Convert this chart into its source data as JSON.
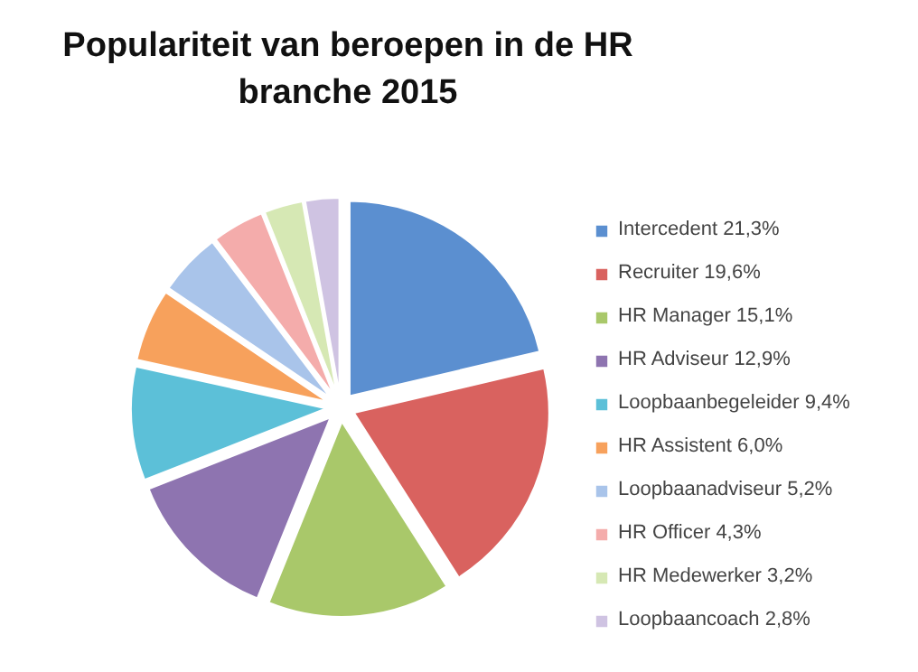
{
  "chart_data": {
    "type": "pie",
    "title": "Populariteit van beroepen in de HR branche 2015",
    "categories": [
      "Intercedent",
      "Recruiter",
      "HR Manager",
      "HR Adviseur",
      "Loopbaanbegeleider",
      "HR Assistent",
      "Loopbaanadviseur",
      "HR Officer",
      "HR Medewerker",
      "Loopbaancoach"
    ],
    "values": [
      21.3,
      19.6,
      15.1,
      12.9,
      9.4,
      6.0,
      5.2,
      4.3,
      3.2,
      2.8
    ],
    "value_labels": [
      "21,3%",
      "19,6%",
      "15,1%",
      "12,9%",
      "9,4%",
      "6,0%",
      "5,2%",
      "4,3%",
      "3,2%",
      "2,8%"
    ],
    "colors": [
      "#5b8fd0",
      "#d9625f",
      "#a9c86a",
      "#8e74b0",
      "#5cc0d8",
      "#f7a15c",
      "#a9c4ea",
      "#f4acab",
      "#d6e8b4",
      "#cfc3e2"
    ],
    "legend": "right"
  }
}
